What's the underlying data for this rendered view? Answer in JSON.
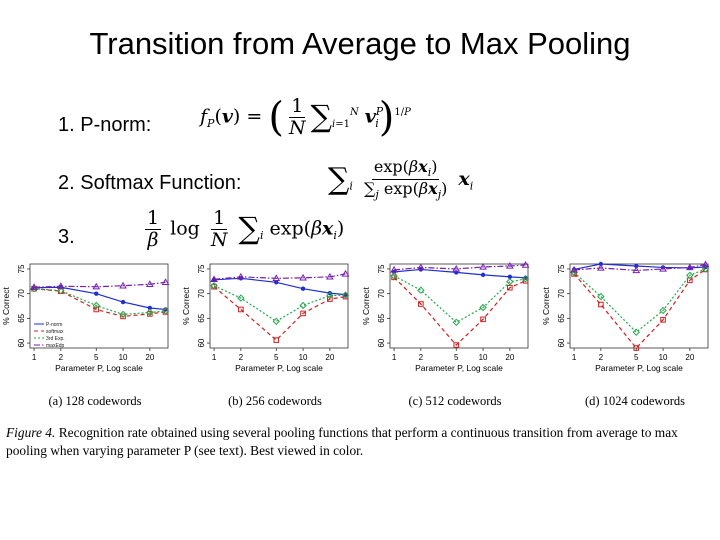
{
  "slide": {
    "title": "Transition from Average to Max Pooling",
    "items": [
      {
        "label": "1. P-norm:"
      },
      {
        "label": "2. Softmax Function:"
      },
      {
        "label": "3."
      }
    ]
  },
  "caption": {
    "figure_label": "Figure 4.",
    "text": "Recognition rate obtained using several pooling functions that perform a continuous transition from average to max pooling when varying parameter P (see text). Best viewed in color."
  },
  "chart_data": [
    {
      "type": "line",
      "subtitle": "(a) 128 codewords",
      "xlabel": "Parameter P, Log scale",
      "ylabel": "% Correct",
      "x": [
        1,
        2,
        5,
        10,
        20,
        30
      ],
      "x_ticks": [
        "1",
        "2",
        "5",
        "10",
        "20"
      ],
      "y_ticks": [
        60,
        65,
        70,
        75
      ],
      "ylim": [
        59,
        76
      ],
      "legend": [
        "P-norm",
        "softmax",
        "3rd Exp.",
        "maxEdp"
      ],
      "legend_placement": "bottom-left",
      "series": [
        {
          "name": "P-norm",
          "color": "#1f2fd0",
          "marker": "circle",
          "values": [
            71.2,
            71.3,
            70.0,
            68.3,
            67.1,
            66.8
          ]
        },
        {
          "name": "softmax",
          "color": "#d12020",
          "marker": "square",
          "values": [
            71.0,
            70.5,
            66.8,
            65.4,
            65.9,
            66.3
          ]
        },
        {
          "name": "3rd Exp.",
          "color": "#22a84a",
          "marker": "diamond",
          "values": [
            71.0,
            70.6,
            67.6,
            65.8,
            66.2,
            66.5
          ]
        },
        {
          "name": "maxEdp",
          "color": "#7a1fb0",
          "marker": "triangle",
          "values": [
            71.3,
            71.5,
            71.4,
            71.6,
            71.9,
            72.3
          ]
        }
      ]
    },
    {
      "type": "line",
      "subtitle": "(b) 256 codewords",
      "xlabel": "Parameter P, Log scale",
      "ylabel": "% Correct",
      "x": [
        1,
        2,
        5,
        10,
        20,
        30
      ],
      "x_ticks": [
        "1",
        "2",
        "5",
        "10",
        "20"
      ],
      "y_ticks": [
        60,
        65,
        70,
        75
      ],
      "ylim": [
        59,
        76
      ],
      "series": [
        {
          "name": "P-norm",
          "color": "#1f2fd0",
          "marker": "circle",
          "values": [
            72.8,
            73.1,
            72.3,
            71.0,
            70.1,
            69.8
          ]
        },
        {
          "name": "softmax",
          "color": "#d12020",
          "marker": "square",
          "values": [
            71.4,
            66.8,
            60.6,
            66.0,
            68.9,
            69.4
          ]
        },
        {
          "name": "3rd Exp.",
          "color": "#22a84a",
          "marker": "diamond",
          "values": [
            71.6,
            69.1,
            64.4,
            67.6,
            69.6,
            69.7
          ]
        },
        {
          "name": "maxEdp",
          "color": "#7a1fb0",
          "marker": "triangle",
          "values": [
            72.9,
            73.4,
            73.1,
            73.2,
            73.4,
            74.0
          ]
        }
      ]
    },
    {
      "type": "line",
      "subtitle": "(c) 512 codewords",
      "xlabel": "Parameter P, Log scale",
      "ylabel": "% Correct",
      "x": [
        1,
        2,
        5,
        10,
        20,
        30
      ],
      "x_ticks": [
        "1",
        "2",
        "5",
        "10",
        "20"
      ],
      "y_ticks": [
        60,
        65,
        70,
        75
      ],
      "ylim": [
        59,
        76
      ],
      "series": [
        {
          "name": "P-norm",
          "color": "#1f2fd0",
          "marker": "circle",
          "values": [
            74.4,
            74.9,
            74.3,
            73.8,
            73.4,
            73.2
          ]
        },
        {
          "name": "softmax",
          "color": "#d12020",
          "marker": "square",
          "values": [
            73.3,
            67.9,
            59.6,
            64.8,
            71.2,
            72.6
          ]
        },
        {
          "name": "3rd Exp.",
          "color": "#22a84a",
          "marker": "diamond",
          "values": [
            73.6,
            70.7,
            64.2,
            67.2,
            72.4,
            73.0
          ]
        },
        {
          "name": "maxEdp",
          "color": "#7a1fb0",
          "marker": "triangle",
          "values": [
            74.8,
            75.3,
            75.0,
            75.4,
            75.6,
            75.8
          ]
        }
      ]
    },
    {
      "type": "line",
      "subtitle": "(d) 1024 codewords",
      "xlabel": "Parameter P, Log scale",
      "ylabel": "% Correct",
      "x": [
        1,
        2,
        5,
        10,
        20,
        30
      ],
      "x_ticks": [
        "1",
        "2",
        "5",
        "10",
        "20"
      ],
      "y_ticks": [
        60,
        65,
        70,
        75
      ],
      "ylim": [
        59,
        76
      ],
      "series": [
        {
          "name": "P-norm",
          "color": "#1f2fd0",
          "marker": "circle",
          "values": [
            74.9,
            76.0,
            75.6,
            75.3,
            75.2,
            75.4
          ]
        },
        {
          "name": "softmax",
          "color": "#d12020",
          "marker": "square",
          "values": [
            74.0,
            67.8,
            59.0,
            64.7,
            72.7,
            74.9
          ]
        },
        {
          "name": "3rd Exp.",
          "color": "#22a84a",
          "marker": "diamond",
          "values": [
            74.3,
            69.4,
            62.2,
            66.6,
            73.7,
            75.0
          ]
        },
        {
          "name": "maxEdp",
          "color": "#7a1fb0",
          "marker": "triangle",
          "values": [
            74.8,
            75.2,
            74.7,
            75.0,
            75.3,
            75.9
          ]
        }
      ]
    }
  ]
}
